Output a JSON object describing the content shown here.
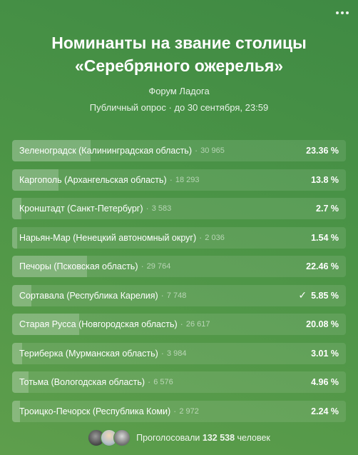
{
  "poll": {
    "title": "Номинанты на звание столицы «Серебряного ожерелья»",
    "source": "Форум Ладога",
    "meta": "Публичный опрос · до 30 сентября, 23:59",
    "options": [
      {
        "label": "Зеленоградск (Калининградская область)",
        "count": "30 965",
        "percent": "23.36 %",
        "share": 23.36,
        "voted": false
      },
      {
        "label": "Каргополь (Архангельская область)",
        "count": "18 293",
        "percent": "13.8 %",
        "share": 13.8,
        "voted": false
      },
      {
        "label": "Кронштадт (Санкт-Петербург)",
        "count": "3 583",
        "percent": "2.7 %",
        "share": 2.7,
        "voted": false
      },
      {
        "label": "Нарьян-Мар (Ненецкий автономный округ)",
        "count": "2 036",
        "percent": "1.54 %",
        "share": 1.54,
        "voted": false
      },
      {
        "label": "Печоры (Псковская область)",
        "count": "29 764",
        "percent": "22.46 %",
        "share": 22.46,
        "voted": false
      },
      {
        "label": "Сортавала (Республика Карелия)",
        "count": "7 748",
        "percent": "5.85 %",
        "share": 5.85,
        "voted": true
      },
      {
        "label": "Старая Русса (Новгородская область)",
        "count": "26 617",
        "percent": "20.08 %",
        "share": 20.08,
        "voted": false
      },
      {
        "label": "Териберка (Мурманская область)",
        "count": "3 984",
        "percent": "3.01 %",
        "share": 3.01,
        "voted": false
      },
      {
        "label": "Тотьма (Вологодская область)",
        "count": "6 576",
        "percent": "4.96 %",
        "share": 4.96,
        "voted": false
      },
      {
        "label": "Троицко-Печорск (Республика Коми)",
        "count": "2 972",
        "percent": "2.24 %",
        "share": 2.24,
        "voted": false
      }
    ],
    "footer": {
      "prefix": "Проголосовали",
      "total": "132 538",
      "suffix": "человек"
    },
    "icons": {
      "menu": "more-icon",
      "voted": "check-icon"
    }
  }
}
